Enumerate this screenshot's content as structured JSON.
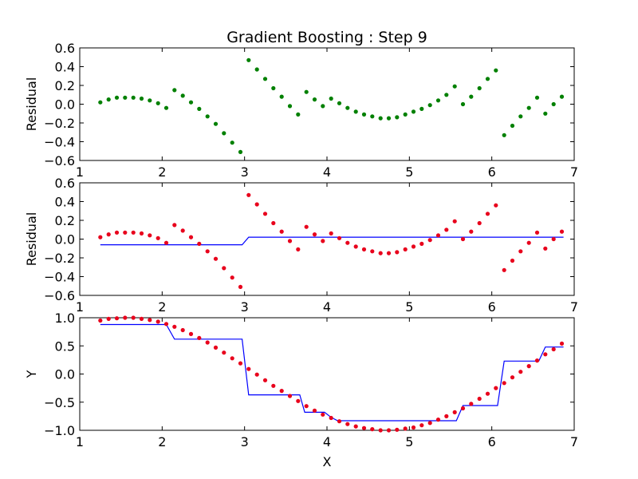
{
  "chart_data": [
    {
      "type": "scatter",
      "title": "Gradient Boosting : Step 9",
      "xlabel": "",
      "ylabel": "Residual",
      "xlim": [
        1,
        7
      ],
      "ylim": [
        -0.6,
        0.6
      ],
      "xticks": [
        "1",
        "2",
        "3",
        "4",
        "5",
        "6",
        "7"
      ],
      "yticks": [
        "0.6",
        "0.4",
        "0.2",
        "0.0",
        "−0.2",
        "−0.4",
        "−0.6"
      ],
      "ytick_values": [
        0.6,
        0.4,
        0.2,
        0.0,
        -0.2,
        -0.4,
        -0.6
      ],
      "point_color": "#008000",
      "x": [
        1.25,
        1.35,
        1.45,
        1.55,
        1.65,
        1.75,
        1.85,
        1.95,
        2.05,
        2.15,
        2.25,
        2.35,
        2.45,
        2.55,
        2.65,
        2.75,
        2.85,
        2.95,
        3.05,
        3.15,
        3.25,
        3.35,
        3.45,
        3.55,
        3.65,
        3.75,
        3.85,
        3.95,
        4.05,
        4.15,
        4.25,
        4.35,
        4.45,
        4.55,
        4.65,
        4.75,
        4.85,
        4.95,
        5.05,
        5.15,
        5.25,
        5.35,
        5.45,
        5.55,
        5.65,
        5.75,
        5.85,
        5.95,
        6.05,
        6.15,
        6.25,
        6.35,
        6.45,
        6.55,
        6.65,
        6.75,
        6.85
      ],
      "y": [
        0.02,
        0.05,
        0.07,
        0.07,
        0.07,
        0.06,
        0.04,
        0.01,
        -0.04,
        0.15,
        0.09,
        0.02,
        -0.05,
        -0.13,
        -0.21,
        -0.31,
        -0.41,
        -0.51,
        0.47,
        0.37,
        0.27,
        0.17,
        0.08,
        -0.02,
        -0.11,
        0.13,
        0.05,
        -0.02,
        0.06,
        0.01,
        -0.04,
        -0.08,
        -0.11,
        -0.13,
        -0.15,
        -0.15,
        -0.14,
        -0.11,
        -0.08,
        -0.05,
        -0.01,
        0.04,
        0.1,
        0.19,
        0.0,
        0.08,
        0.17,
        0.27,
        0.36,
        -0.33,
        -0.23,
        -0.13,
        -0.04,
        0.07,
        -0.1,
        0.0,
        0.08
      ]
    },
    {
      "type": "scatter",
      "title": "",
      "xlabel": "",
      "ylabel": "Residual",
      "xlim": [
        1,
        7
      ],
      "ylim": [
        -0.6,
        0.6
      ],
      "xticks": [
        "1",
        "2",
        "3",
        "4",
        "5",
        "6",
        "7"
      ],
      "yticks": [
        "0.6",
        "0.4",
        "0.2",
        "0.0",
        "−0.2",
        "−0.4",
        "−0.6"
      ],
      "ytick_values": [
        0.6,
        0.4,
        0.2,
        0.0,
        -0.2,
        -0.4,
        -0.6
      ],
      "point_color": "#e8001c",
      "line_color": "#0000ff",
      "x": [
        1.25,
        1.35,
        1.45,
        1.55,
        1.65,
        1.75,
        1.85,
        1.95,
        2.05,
        2.15,
        2.25,
        2.35,
        2.45,
        2.55,
        2.65,
        2.75,
        2.85,
        2.95,
        3.05,
        3.15,
        3.25,
        3.35,
        3.45,
        3.55,
        3.65,
        3.75,
        3.85,
        3.95,
        4.05,
        4.15,
        4.25,
        4.35,
        4.45,
        4.55,
        4.65,
        4.75,
        4.85,
        4.95,
        5.05,
        5.15,
        5.25,
        5.35,
        5.45,
        5.55,
        5.65,
        5.75,
        5.85,
        5.95,
        6.05,
        6.15,
        6.25,
        6.35,
        6.45,
        6.55,
        6.65,
        6.75,
        6.85
      ],
      "y": [
        0.02,
        0.05,
        0.07,
        0.07,
        0.07,
        0.06,
        0.04,
        0.01,
        -0.04,
        0.15,
        0.09,
        0.02,
        -0.05,
        -0.13,
        -0.21,
        -0.31,
        -0.41,
        -0.51,
        0.47,
        0.37,
        0.27,
        0.17,
        0.08,
        -0.02,
        -0.11,
        0.13,
        0.05,
        -0.02,
        0.06,
        0.01,
        -0.04,
        -0.08,
        -0.11,
        -0.13,
        -0.15,
        -0.15,
        -0.14,
        -0.11,
        -0.08,
        -0.05,
        -0.01,
        0.04,
        0.1,
        0.19,
        0.0,
        0.08,
        0.17,
        0.27,
        0.36,
        -0.33,
        -0.23,
        -0.13,
        -0.04,
        0.07,
        -0.1,
        0.0,
        0.08
      ],
      "line": [
        [
          1.25,
          -0.06
        ],
        [
          2.97,
          -0.06
        ],
        [
          3.05,
          0.02
        ],
        [
          6.87,
          0.02
        ]
      ]
    },
    {
      "type": "scatter",
      "title": "",
      "xlabel": "X",
      "ylabel": "Y",
      "xlim": [
        1,
        7
      ],
      "ylim": [
        -1.0,
        1.0
      ],
      "xticks": [
        "1",
        "2",
        "3",
        "4",
        "5",
        "6",
        "7"
      ],
      "yticks": [
        "1.0",
        "0.5",
        "0.0",
        "−0.5",
        "−1.0"
      ],
      "ytick_values": [
        1.0,
        0.5,
        0.0,
        -0.5,
        -1.0
      ],
      "point_color": "#e8001c",
      "line_color": "#0000ff",
      "x": [
        1.25,
        1.35,
        1.45,
        1.55,
        1.65,
        1.75,
        1.85,
        1.95,
        2.05,
        2.15,
        2.25,
        2.35,
        2.45,
        2.55,
        2.65,
        2.75,
        2.85,
        2.95,
        3.05,
        3.15,
        3.25,
        3.35,
        3.45,
        3.55,
        3.65,
        3.75,
        3.85,
        3.95,
        4.05,
        4.15,
        4.25,
        4.35,
        4.45,
        4.55,
        4.65,
        4.75,
        4.85,
        4.95,
        5.05,
        5.15,
        5.25,
        5.35,
        5.45,
        5.55,
        5.65,
        5.75,
        5.85,
        5.95,
        6.05,
        6.15,
        6.25,
        6.35,
        6.45,
        6.55,
        6.65,
        6.75,
        6.85
      ],
      "y": [
        0.95,
        0.98,
        0.99,
        1.0,
        1.0,
        0.98,
        0.96,
        0.93,
        0.89,
        0.84,
        0.78,
        0.71,
        0.64,
        0.56,
        0.47,
        0.38,
        0.28,
        0.19,
        0.09,
        -0.01,
        -0.11,
        -0.21,
        -0.3,
        -0.39,
        -0.48,
        -0.57,
        -0.65,
        -0.72,
        -0.78,
        -0.84,
        -0.89,
        -0.93,
        -0.96,
        -0.98,
        -1.0,
        -1.0,
        -0.99,
        -0.97,
        -0.95,
        -0.91,
        -0.87,
        -0.81,
        -0.75,
        -0.68,
        -0.61,
        -0.53,
        -0.44,
        -0.35,
        -0.25,
        -0.16,
        -0.06,
        0.04,
        0.14,
        0.24,
        0.35,
        0.44,
        0.54
      ],
      "line": [
        [
          1.25,
          0.88
        ],
        [
          2.05,
          0.88
        ],
        [
          2.15,
          0.62
        ],
        [
          2.97,
          0.62
        ],
        [
          3.05,
          -0.37
        ],
        [
          3.67,
          -0.37
        ],
        [
          3.73,
          -0.68
        ],
        [
          3.97,
          -0.68
        ],
        [
          4.05,
          -0.77
        ],
        [
          4.13,
          -0.83
        ],
        [
          5.57,
          -0.83
        ],
        [
          5.65,
          -0.56
        ],
        [
          6.07,
          -0.56
        ],
        [
          6.15,
          0.23
        ],
        [
          6.57,
          0.23
        ],
        [
          6.65,
          0.48
        ],
        [
          6.87,
          0.48
        ]
      ]
    }
  ]
}
